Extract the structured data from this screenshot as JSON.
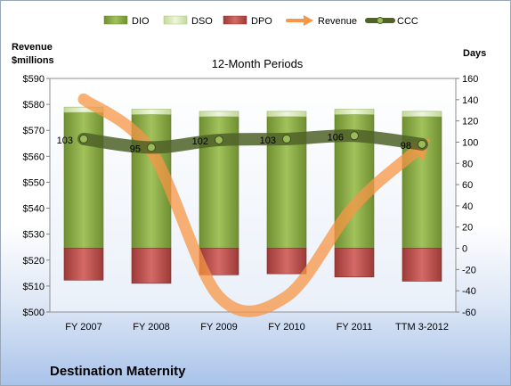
{
  "chart_data": {
    "type": "bar",
    "title": "12-Month Periods",
    "footer_title": "Destination Maternity",
    "categories": [
      "FY 2007",
      "FY 2008",
      "FY 2009",
      "FY 2010",
      "FY 2011",
      "TTM 3-2012"
    ],
    "left_axis": {
      "label_line1": "Revenue",
      "label_line2": "$millions",
      "min": 500,
      "max": 590,
      "step": 10,
      "prefix": "$"
    },
    "right_axis": {
      "label": "Days",
      "min": -60,
      "max": 160,
      "step": 20
    },
    "series": [
      {
        "name": "DIO",
        "kind": "stacked-bar",
        "axis": "right",
        "values": [
          128,
          126,
          124,
          124,
          126,
          124
        ],
        "color": "#8fb04a"
      },
      {
        "name": "DSO",
        "kind": "stacked-bar",
        "axis": "right",
        "values": [
          5,
          5,
          5,
          5,
          5,
          5
        ],
        "color": "#dbe9b6"
      },
      {
        "name": "DPO",
        "kind": "negative-bar",
        "axis": "right",
        "values": [
          -30,
          -33,
          -25,
          -24,
          -27,
          -31
        ],
        "color": "#c0504d"
      },
      {
        "name": "Revenue",
        "kind": "line",
        "axis": "left",
        "values": [
          582,
          562,
          506,
          506,
          541,
          564
        ],
        "color": "#f79646"
      },
      {
        "name": "CCC",
        "kind": "line",
        "axis": "right",
        "values": [
          103,
          95,
          102,
          103,
          106,
          98
        ],
        "color": "#4f6228"
      }
    ],
    "ccc_labels": [
      "103",
      "95",
      "102",
      "103",
      "106",
      "98"
    ],
    "legend_position": "top"
  }
}
